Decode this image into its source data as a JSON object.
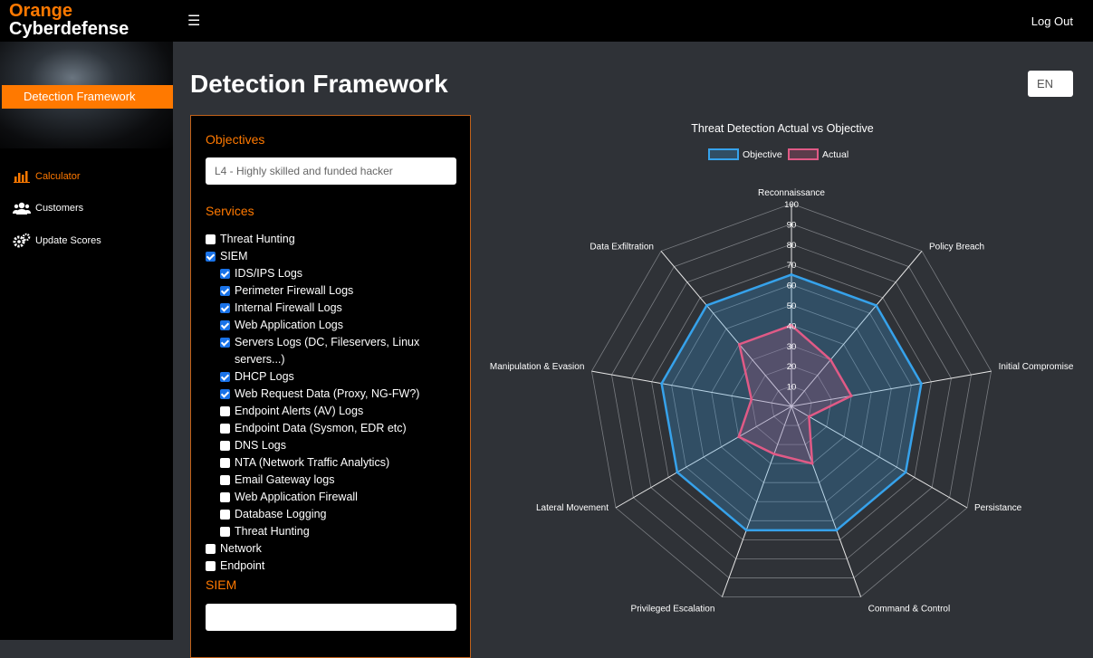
{
  "brand": {
    "line1": "Orange",
    "line2": "Cyberdefense"
  },
  "header": {
    "menu_icon": "hamburger-icon",
    "logout": "Log Out"
  },
  "sidebar": {
    "banner": "Detection Framework",
    "items": [
      {
        "label": "Calculator",
        "icon": "bar-chart-icon",
        "active": true
      },
      {
        "label": "Customers",
        "icon": "users-icon",
        "active": false
      },
      {
        "label": "Update Scores",
        "icon": "gears-icon",
        "active": false
      }
    ]
  },
  "page": {
    "title": "Detection Framework",
    "language": "EN"
  },
  "form": {
    "objectives_label": "Objectives",
    "objective_value": "L4 - Highly skilled and funded hacker",
    "services_label": "Services",
    "services": [
      {
        "label": "Threat Hunting",
        "checked": false,
        "level": 0
      },
      {
        "label": "SIEM",
        "checked": true,
        "level": 0
      },
      {
        "label": "IDS/IPS Logs",
        "checked": true,
        "level": 1
      },
      {
        "label": "Perimeter Firewall Logs",
        "checked": true,
        "level": 1
      },
      {
        "label": "Internal Firewall Logs",
        "checked": true,
        "level": 1
      },
      {
        "label": "Web Application Logs",
        "checked": true,
        "level": 1
      },
      {
        "label": "Servers Logs (DC, Fileservers, Linux servers...)",
        "checked": true,
        "level": 1
      },
      {
        "label": "DHCP Logs",
        "checked": true,
        "level": 1
      },
      {
        "label": "Web Request Data (Proxy, NG-FW?)",
        "checked": true,
        "level": 1
      },
      {
        "label": "Endpoint Alerts (AV) Logs",
        "checked": false,
        "level": 1
      },
      {
        "label": "Endpoint Data (Sysmon, EDR etc)",
        "checked": false,
        "level": 1
      },
      {
        "label": "DNS Logs",
        "checked": false,
        "level": 1
      },
      {
        "label": "NTA (Network Traffic Analytics)",
        "checked": false,
        "level": 1
      },
      {
        "label": "Email Gateway logs",
        "checked": false,
        "level": 1
      },
      {
        "label": "Web Application Firewall",
        "checked": false,
        "level": 1
      },
      {
        "label": "Database Logging",
        "checked": false,
        "level": 1
      },
      {
        "label": "Threat Hunting",
        "checked": false,
        "level": 1
      },
      {
        "label": "Network",
        "checked": false,
        "level": 0
      },
      {
        "label": "Endpoint",
        "checked": false,
        "level": 0
      }
    ],
    "siem_label": "SIEM",
    "siem_value": ""
  },
  "chart_data": {
    "type": "radar",
    "title": "Threat Detection Actual vs Objective",
    "categories": [
      "Reconnaissance",
      "Policy Breach",
      "Initial Compromise",
      "Persistance",
      "Command & Control",
      "Privileged Escalation",
      "Lateral Movement",
      "Manipulation & Evasion",
      "Data Exfiltration"
    ],
    "range": [
      0,
      100
    ],
    "ticks": [
      10,
      20,
      30,
      40,
      50,
      60,
      70,
      80,
      90,
      100
    ],
    "series": [
      {
        "name": "Objective",
        "color": "#36a2eb",
        "values": [
          65,
          65,
          65,
          65,
          65,
          65,
          65,
          65,
          65
        ]
      },
      {
        "name": "Actual",
        "color": "#e05a86",
        "values": [
          40,
          30,
          30,
          10,
          30,
          25,
          30,
          20,
          40
        ]
      }
    ],
    "legend": "top"
  }
}
